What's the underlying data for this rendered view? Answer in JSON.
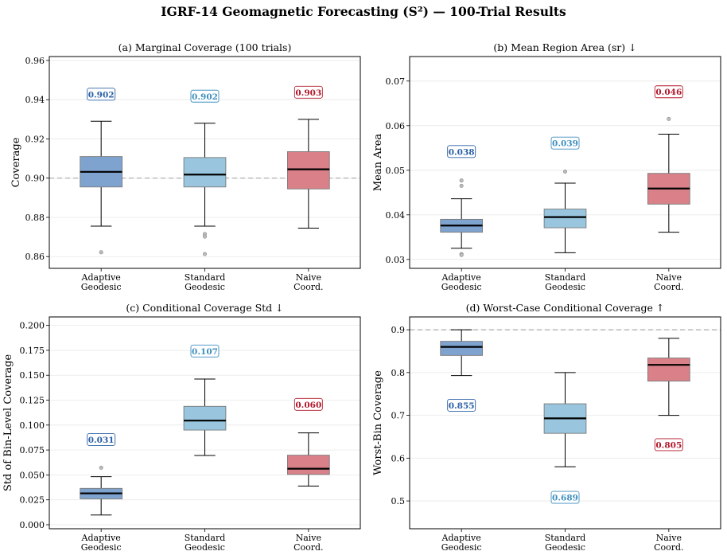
{
  "figure": {
    "title": "IGRF-14 Geomagnetic Forecasting (S²) — 100-Trial Results"
  },
  "colors": {
    "adaptive": "#7fa3cf",
    "standard": "#99c6de",
    "naive": "#d98089",
    "adaptive_label": "#2b60a6",
    "standard_label": "#3e8fc0",
    "naive_label": "#b2182b"
  },
  "chart_data": [
    {
      "type": "box",
      "title": "(a)  Marginal Coverage (100 trials)",
      "ylabel": "Coverage",
      "categories": [
        "Adaptive\nGeodesic",
        "Standard\nGeodesic",
        "Naive\nCoord."
      ],
      "ylim": [
        0.854,
        0.962
      ],
      "yticks": [
        0.86,
        0.88,
        0.9,
        0.92,
        0.94,
        0.96
      ],
      "ytick_labels": [
        "0.86",
        "0.88",
        "0.90",
        "0.92",
        "0.94",
        "0.96"
      ],
      "reference_line": 0.9,
      "boxes": [
        {
          "whislo": 0.8755,
          "q1": 0.8955,
          "med": 0.9032,
          "q3": 0.911,
          "whishi": 0.929,
          "fliers": [
            0.8622
          ]
        },
        {
          "whislo": 0.8755,
          "q1": 0.8955,
          "med": 0.9018,
          "q3": 0.9105,
          "whishi": 0.928,
          "fliers": [
            0.8715,
            0.8702,
            0.8613
          ]
        },
        {
          "whislo": 0.8745,
          "q1": 0.8945,
          "med": 0.9045,
          "q3": 0.9135,
          "whishi": 0.93,
          "fliers": []
        }
      ],
      "mean_labels": [
        "0.902",
        "0.902",
        "0.903"
      ],
      "label_positions": [
        0.9428,
        0.9418,
        0.9438
      ]
    },
    {
      "type": "box",
      "title": "(b)  Mean Region Area (sr) ↓",
      "ylabel": "Mean Area",
      "categories": [
        "Adaptive\nGeodesic",
        "Standard\nGeodesic",
        "Naive\nCoord."
      ],
      "ylim": [
        0.028,
        0.0755
      ],
      "yticks": [
        0.03,
        0.04,
        0.05,
        0.06,
        0.07
      ],
      "ytick_labels": [
        "0.03",
        "0.04",
        "0.05",
        "0.06",
        "0.07"
      ],
      "reference_line": null,
      "boxes": [
        {
          "whislo": 0.0325,
          "q1": 0.0361,
          "med": 0.0376,
          "q3": 0.039,
          "whishi": 0.0436,
          "fliers": [
            0.0477,
            0.0465,
            0.0312,
            0.031
          ]
        },
        {
          "whislo": 0.0315,
          "q1": 0.0371,
          "med": 0.0395,
          "q3": 0.0413,
          "whishi": 0.0471,
          "fliers": [
            0.0497
          ]
        },
        {
          "whislo": 0.0361,
          "q1": 0.0424,
          "med": 0.0459,
          "q3": 0.0493,
          "whishi": 0.0581,
          "fliers": [
            0.0615
          ]
        }
      ],
      "mean_labels": [
        "0.038",
        "0.039",
        "0.046"
      ],
      "label_positions": [
        0.0542,
        0.0561,
        0.0676
      ]
    },
    {
      "type": "box",
      "title": "(c)  Conditional Coverage Std ↓",
      "ylabel": "Std of Bin-Level Coverage",
      "categories": [
        "Adaptive\nGeodesic",
        "Standard\nGeodesic",
        "Naive\nCoord."
      ],
      "ylim": [
        -0.004,
        0.2085
      ],
      "yticks": [
        0.0,
        0.025,
        0.05,
        0.075,
        0.1,
        0.125,
        0.15,
        0.175,
        0.2
      ],
      "ytick_labels": [
        "0.000",
        "0.025",
        "0.050",
        "0.075",
        "0.100",
        "0.125",
        "0.150",
        "0.175",
        "0.200"
      ],
      "reference_line": null,
      "boxes": [
        {
          "whislo": 0.0098,
          "q1": 0.026,
          "med": 0.0315,
          "q3": 0.0365,
          "whishi": 0.0482,
          "fliers": [
            0.0572
          ]
        },
        {
          "whislo": 0.0695,
          "q1": 0.095,
          "med": 0.1045,
          "q3": 0.1188,
          "whishi": 0.1462,
          "fliers": []
        },
        {
          "whislo": 0.0388,
          "q1": 0.0505,
          "med": 0.0562,
          "q3": 0.0698,
          "whishi": 0.0922,
          "fliers": []
        }
      ],
      "mean_labels": [
        "0.031",
        "0.107",
        "0.060"
      ],
      "label_positions": [
        0.0855,
        0.1743,
        0.1208
      ]
    },
    {
      "type": "box",
      "title": "(d)  Worst-Case Conditional Coverage ↑",
      "ylabel": "Worst-Bin Coverage",
      "categories": [
        "Adaptive\nGeodesic",
        "Standard\nGeodesic",
        "Naive\nCoord."
      ],
      "ylim": [
        0.435,
        0.93
      ],
      "yticks": [
        0.5,
        0.6,
        0.7,
        0.8,
        0.9
      ],
      "ytick_labels": [
        "0.5",
        "0.6",
        "0.7",
        "0.8",
        "0.9"
      ],
      "reference_line": 0.9,
      "boxes": [
        {
          "whislo": 0.793,
          "q1": 0.84,
          "med": 0.86,
          "q3": 0.873,
          "whishi": 0.9,
          "fliers": []
        },
        {
          "whislo": 0.58,
          "q1": 0.658,
          "med": 0.693,
          "q3": 0.727,
          "whishi": 0.8,
          "fliers": []
        },
        {
          "whislo": 0.7,
          "q1": 0.78,
          "med": 0.818,
          "q3": 0.834,
          "whishi": 0.88,
          "fliers": []
        }
      ],
      "mean_labels": [
        "0.855",
        "0.689",
        "0.805"
      ],
      "label_positions": [
        0.7235,
        0.5083,
        0.6315
      ]
    }
  ]
}
